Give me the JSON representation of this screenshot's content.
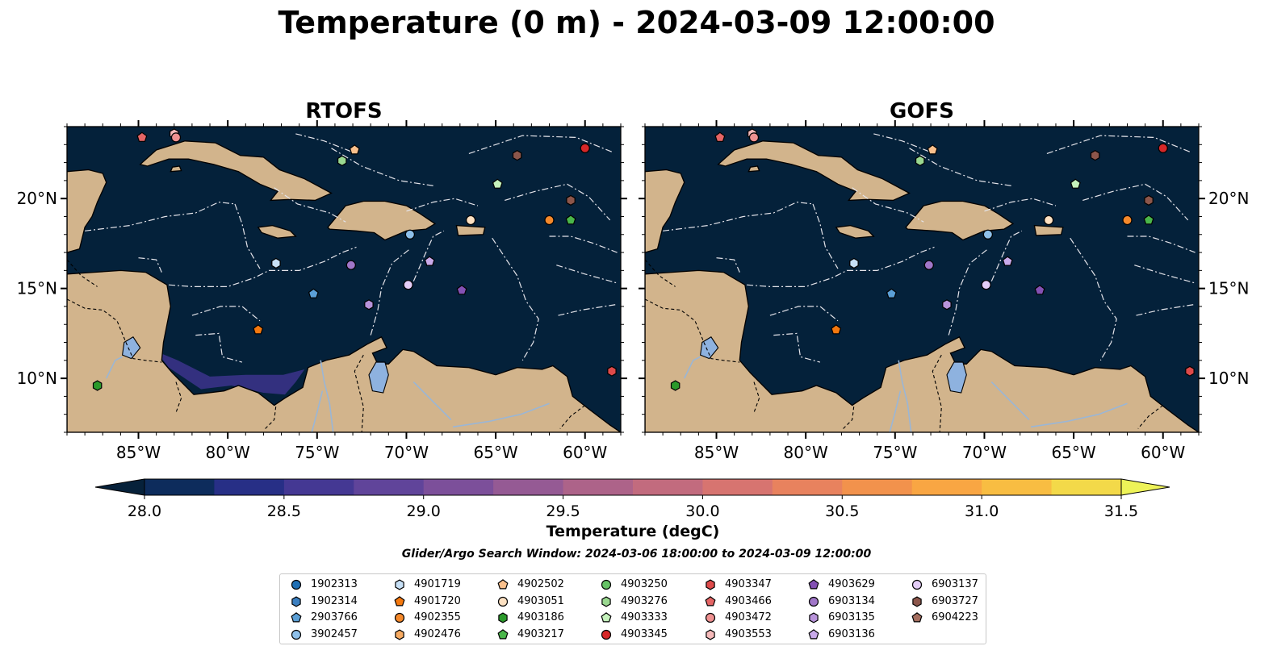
{
  "title": "Temperature (0 m) - 2024-03-09 12:00:00",
  "panels": [
    {
      "name": "RTOFS"
    },
    {
      "name": "GOFS"
    }
  ],
  "lon_ticks": [
    "85°W",
    "80°W",
    "75°W",
    "70°W",
    "65°W",
    "60°W"
  ],
  "lat_ticks": [
    "20°N",
    "15°N",
    "10°N"
  ],
  "map_extent": {
    "lon": [
      -89,
      -58
    ],
    "lat": [
      7,
      24
    ]
  },
  "colorbar": {
    "label": "Temperature (degC)",
    "min": 28.0,
    "max": 31.5,
    "ticks": [
      "28.0",
      "28.5",
      "29.0",
      "29.5",
      "30.0",
      "30.5",
      "31.0",
      "31.5"
    ],
    "colors": [
      "#06213a",
      "#0d2c5c",
      "#272f86",
      "#443893",
      "#60449a",
      "#7c4f9a",
      "#955a94",
      "#ad6389",
      "#c26b7e",
      "#d77470",
      "#e8825e",
      "#f2924c",
      "#f9a643",
      "#f8bd42",
      "#f3d949",
      "#eef358"
    ]
  },
  "colors": {
    "ocean": "#04213a",
    "land": "#d2b48c",
    "lake": "#8eb2df"
  },
  "search_window": "Glider/Argo Search Window: 2024-03-06 18:00:00 to 2024-03-09 12:00:00",
  "legend": [
    {
      "id": "1902313",
      "marker": "circle",
      "color": "#1f6fb4"
    },
    {
      "id": "1902314",
      "marker": "hexagon",
      "color": "#3b7fc0"
    },
    {
      "id": "2903766",
      "marker": "pentagon",
      "color": "#5b9fd6"
    },
    {
      "id": "3902457",
      "marker": "circle",
      "color": "#8ec0ea"
    },
    {
      "id": "4901719",
      "marker": "hexagon",
      "color": "#c7e0f6"
    },
    {
      "id": "4901720",
      "marker": "pentagon",
      "color": "#f5790f"
    },
    {
      "id": "4902355",
      "marker": "circle",
      "color": "#f5892b"
    },
    {
      "id": "4902476",
      "marker": "hexagon",
      "color": "#f8ab62"
    },
    {
      "id": "4902502",
      "marker": "pentagon",
      "color": "#fac08c"
    },
    {
      "id": "4903051",
      "marker": "circle",
      "color": "#fde1c2"
    },
    {
      "id": "4903186",
      "marker": "hexagon",
      "color": "#2b9a2b"
    },
    {
      "id": "4903217",
      "marker": "pentagon",
      "color": "#4ab64a"
    },
    {
      "id": "4903250",
      "marker": "circle",
      "color": "#66c266"
    },
    {
      "id": "4903276",
      "marker": "hexagon",
      "color": "#9ad890"
    },
    {
      "id": "4903333",
      "marker": "pentagon",
      "color": "#c5f2bc"
    },
    {
      "id": "4903345",
      "marker": "circle",
      "color": "#d62728"
    },
    {
      "id": "4903347",
      "marker": "hexagon",
      "color": "#de4a4a"
    },
    {
      "id": "4903466",
      "marker": "pentagon",
      "color": "#e56565"
    },
    {
      "id": "4903472",
      "marker": "circle",
      "color": "#ef9191"
    },
    {
      "id": "4903553",
      "marker": "hexagon",
      "color": "#f6baba"
    },
    {
      "id": "4903629",
      "marker": "pentagon",
      "color": "#8451b4"
    },
    {
      "id": "6903134",
      "marker": "circle",
      "color": "#a076c8"
    },
    {
      "id": "6903135",
      "marker": "hexagon",
      "color": "#b893da"
    },
    {
      "id": "6903136",
      "marker": "pentagon",
      "color": "#c9aaea"
    },
    {
      "id": "6903137",
      "marker": "circle",
      "color": "#e4cdf7"
    },
    {
      "id": "6903727",
      "marker": "hexagon",
      "color": "#8c564b"
    },
    {
      "id": "6904223",
      "marker": "pentagon",
      "color": "#a56e5f"
    }
  ],
  "floats": [
    {
      "id": "4903466",
      "lon": -84.8,
      "lat": 23.4
    },
    {
      "id": "4903553",
      "lon": -83.0,
      "lat": 23.6
    },
    {
      "id": "4903472",
      "lon": -82.9,
      "lat": 23.4
    },
    {
      "id": "4903276",
      "lon": -73.6,
      "lat": 22.1
    },
    {
      "id": "4902502",
      "lon": -72.9,
      "lat": 22.7
    },
    {
      "id": "6903727",
      "lon": -63.8,
      "lat": 22.4
    },
    {
      "id": "4903345",
      "lon": -60.0,
      "lat": 22.8
    },
    {
      "id": "4903333",
      "lon": -64.9,
      "lat": 20.8
    },
    {
      "id": "6903727",
      "lon": -60.8,
      "lat": 19.9
    },
    {
      "id": "4903051",
      "lon": -66.4,
      "lat": 18.8
    },
    {
      "id": "4902355",
      "lon": -62.0,
      "lat": 18.8
    },
    {
      "id": "4903217",
      "lon": -60.8,
      "lat": 18.8
    },
    {
      "id": "3902457",
      "lon": -69.8,
      "lat": 18.0
    },
    {
      "id": "4901719",
      "lon": -77.3,
      "lat": 16.4
    },
    {
      "id": "6903134",
      "lon": -73.1,
      "lat": 16.3
    },
    {
      "id": "6903136",
      "lon": -68.7,
      "lat": 16.5
    },
    {
      "id": "6903137",
      "lon": -69.9,
      "lat": 15.2
    },
    {
      "id": "4903629",
      "lon": -66.9,
      "lat": 14.9
    },
    {
      "id": "2903766",
      "lon": -75.2,
      "lat": 14.7
    },
    {
      "id": "6903135",
      "lon": -72.1,
      "lat": 14.1
    },
    {
      "id": "4901720",
      "lon": -78.3,
      "lat": 12.7
    },
    {
      "id": "4903186",
      "lon": -87.3,
      "lat": 9.6
    },
    {
      "id": "4903347",
      "lon": -58.5,
      "lat": 10.4
    }
  ]
}
